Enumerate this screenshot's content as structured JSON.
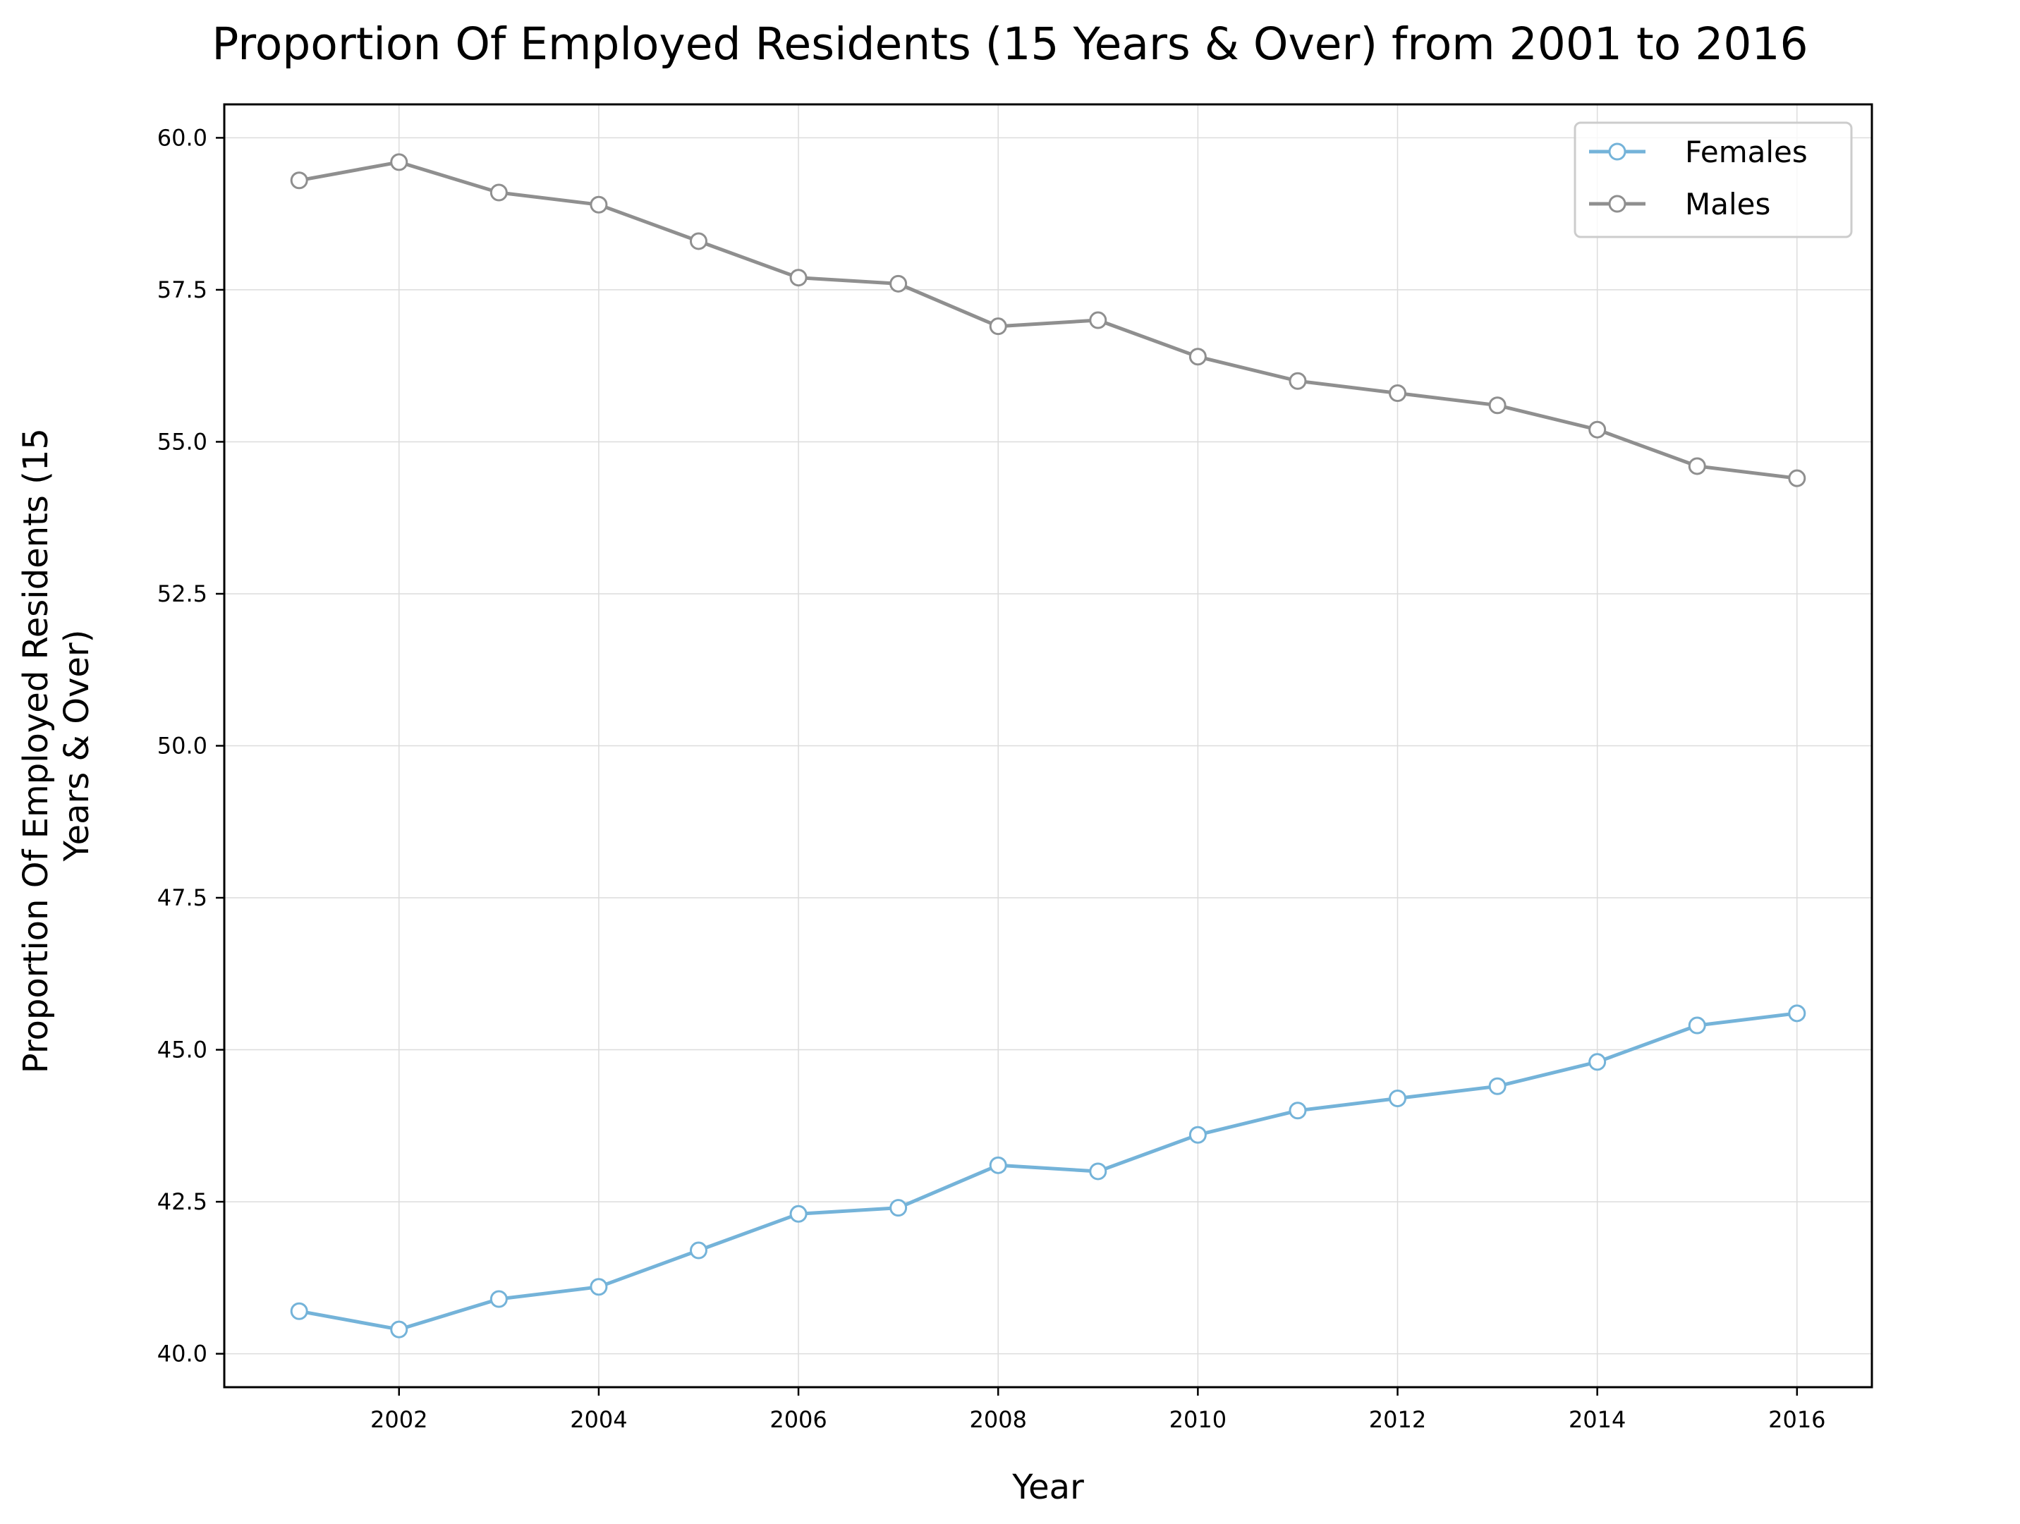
{
  "chart_data": {
    "type": "line",
    "title": "Proportion Of Employed Residents (15 Years & Over) from 2001 to 2016",
    "xlabel": "Year",
    "ylabel_lines": [
      "Proportion Of Employed Residents (15",
      "Years & Over)"
    ],
    "x": [
      2001,
      2002,
      2003,
      2004,
      2005,
      2006,
      2007,
      2008,
      2009,
      2010,
      2011,
      2012,
      2013,
      2014,
      2015,
      2016
    ],
    "xlim": [
      2000.25,
      2016.75
    ],
    "ylim": [
      39.45,
      60.55
    ],
    "xticks": [
      "2002",
      "2004",
      "2006",
      "2008",
      "2010",
      "2012",
      "2014",
      "2016"
    ],
    "yticks": [
      "40.0",
      "42.5",
      "45.0",
      "47.5",
      "50.0",
      "52.5",
      "55.0",
      "57.5",
      "60.0"
    ],
    "grid": true,
    "legend_position": "top-right",
    "series": [
      {
        "name": "Females",
        "color": "#74b3d9",
        "values": [
          40.7,
          40.4,
          40.9,
          41.1,
          41.7,
          42.3,
          42.4,
          43.1,
          43.0,
          43.6,
          44.0,
          44.2,
          44.4,
          44.8,
          45.4,
          45.6
        ]
      },
      {
        "name": "Males",
        "color": "#8f8f8f",
        "values": [
          59.3,
          59.6,
          59.1,
          58.9,
          58.3,
          57.7,
          57.6,
          56.9,
          57.0,
          56.4,
          56.0,
          55.8,
          55.6,
          55.2,
          54.6,
          54.4
        ]
      }
    ]
  }
}
